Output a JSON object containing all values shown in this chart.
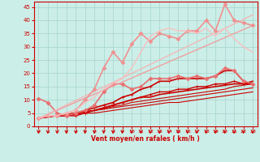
{
  "background_color": "#cceee8",
  "grid_color": "#aad8d0",
  "xlabel": "Vent moyen/en rafales ( km/h )",
  "xlabel_color": "#cc0000",
  "tick_color": "#cc0000",
  "xlim": [
    -0.5,
    23.5
  ],
  "ylim": [
    0,
    47
  ],
  "yticks": [
    0,
    5,
    10,
    15,
    20,
    25,
    30,
    35,
    40,
    45
  ],
  "xticks": [
    0,
    1,
    2,
    3,
    4,
    5,
    6,
    7,
    8,
    9,
    10,
    11,
    12,
    13,
    14,
    15,
    16,
    17,
    18,
    19,
    20,
    21,
    22,
    23
  ],
  "lines": [
    {
      "x": [
        0,
        1,
        2,
        3,
        4,
        5,
        6,
        7,
        8,
        9,
        10,
        11,
        12,
        13,
        14,
        15,
        16,
        17,
        18,
        19,
        20,
        21,
        22,
        23
      ],
      "y": [
        3,
        3.5,
        4,
        4,
        4.5,
        5,
        5,
        5.5,
        6,
        6.5,
        7,
        7.5,
        8,
        8.5,
        9,
        9,
        9.5,
        10,
        10.5,
        11,
        11.5,
        12,
        12.5,
        13
      ],
      "color": "#cc0000",
      "lw": 0.8,
      "marker": null,
      "ms": 0
    },
    {
      "x": [
        0,
        1,
        2,
        3,
        4,
        5,
        6,
        7,
        8,
        9,
        10,
        11,
        12,
        13,
        14,
        15,
        16,
        17,
        18,
        19,
        20,
        21,
        22,
        23
      ],
      "y": [
        3,
        3.5,
        4,
        4.5,
        5,
        5.5,
        6,
        6.5,
        7,
        7.5,
        8,
        8.5,
        9,
        9.5,
        10,
        10.5,
        11,
        11.5,
        12,
        12.5,
        13,
        13.5,
        14,
        14.5
      ],
      "color": "#cc0000",
      "lw": 0.8,
      "marker": null,
      "ms": 0
    },
    {
      "x": [
        0,
        1,
        2,
        3,
        4,
        5,
        6,
        7,
        8,
        9,
        10,
        11,
        12,
        13,
        14,
        15,
        16,
        17,
        18,
        19,
        20,
        21,
        22,
        23
      ],
      "y": [
        3,
        3.5,
        4,
        4.5,
        5,
        5.5,
        6,
        6.5,
        7.5,
        8,
        9,
        9.5,
        10,
        10.5,
        11,
        11.5,
        12,
        12.5,
        13,
        13.5,
        14,
        15,
        15.5,
        16
      ],
      "color": "#cc0000",
      "lw": 0.8,
      "marker": null,
      "ms": 0
    },
    {
      "x": [
        0,
        1,
        2,
        3,
        4,
        5,
        6,
        7,
        8,
        9,
        10,
        11,
        12,
        13,
        14,
        15,
        16,
        17,
        18,
        19,
        20,
        21,
        22,
        23
      ],
      "y": [
        3,
        4,
        4,
        4.5,
        5,
        5.5,
        6,
        7,
        8,
        9,
        10,
        11,
        11,
        12,
        12.5,
        13,
        13.5,
        14,
        14.5,
        15,
        15.5,
        16,
        16,
        17
      ],
      "color": "#cc0000",
      "lw": 1.2,
      "marker": null,
      "ms": 0
    },
    {
      "x": [
        0,
        1,
        2,
        3,
        4,
        5,
        6,
        7,
        8,
        9,
        10,
        11,
        12,
        13,
        14,
        15,
        16,
        17,
        18,
        19,
        20,
        21,
        22,
        23
      ],
      "y": [
        3,
        4,
        4,
        4,
        4,
        5,
        6,
        7,
        8,
        9,
        10,
        11,
        12,
        13,
        13,
        14,
        14,
        15,
        15,
        16,
        16,
        17,
        16,
        16
      ],
      "color": "#cc0000",
      "lw": 1.0,
      "marker": "+",
      "ms": 3
    },
    {
      "x": [
        0,
        1,
        2,
        3,
        4,
        5,
        6,
        7,
        8,
        9,
        10,
        11,
        12,
        13,
        14,
        15,
        16,
        17,
        18,
        19,
        20,
        21,
        22,
        23
      ],
      "y": [
        3,
        4,
        4,
        4,
        5,
        6,
        7,
        8,
        9,
        11,
        12,
        14,
        15,
        17,
        17,
        18,
        18,
        18,
        18,
        19,
        21,
        21,
        17,
        16
      ],
      "color": "#cc0000",
      "lw": 1.2,
      "marker": "+",
      "ms": 3
    },
    {
      "x": [
        0,
        1,
        2,
        3,
        4,
        5,
        6,
        7,
        8,
        9,
        10,
        11,
        12,
        13,
        14,
        15,
        16,
        17,
        18,
        19,
        20,
        21,
        22,
        23
      ],
      "y": [
        10.5,
        9,
        5,
        4,
        5,
        6,
        8,
        13,
        16,
        16,
        14,
        15,
        18,
        18,
        18,
        19,
        18,
        19,
        18,
        19,
        22,
        21,
        17,
        16
      ],
      "color": "#e87070",
      "lw": 1.2,
      "marker": "D",
      "ms": 2.5
    },
    {
      "x": [
        0,
        23
      ],
      "y": [
        3,
        38
      ],
      "color": "#f0a0a0",
      "lw": 1.0,
      "marker": null,
      "ms": 0
    },
    {
      "x": [
        0,
        23
      ],
      "y": [
        3,
        42
      ],
      "color": "#f0b8b8",
      "lw": 1.0,
      "marker": null,
      "ms": 0
    },
    {
      "x": [
        0,
        1,
        2,
        3,
        4,
        5,
        6,
        7,
        8,
        9,
        10,
        11,
        12,
        13,
        14,
        15,
        16,
        17,
        18,
        19,
        20,
        21,
        22,
        23
      ],
      "y": [
        3,
        4,
        4,
        5,
        6,
        10,
        14,
        22,
        28,
        24,
        31,
        35,
        32,
        35,
        34,
        33,
        36,
        36,
        40,
        36,
        46,
        40,
        39,
        38
      ],
      "color": "#f09090",
      "lw": 1.2,
      "marker": "D",
      "ms": 2.5
    },
    {
      "x": [
        0,
        1,
        2,
        3,
        4,
        5,
        6,
        7,
        8,
        9,
        10,
        11,
        12,
        13,
        14,
        15,
        16,
        17,
        18,
        19,
        20,
        21,
        22,
        23
      ],
      "y": [
        3,
        4,
        4,
        5,
        6,
        9,
        11,
        14,
        16,
        18,
        22,
        28,
        34,
        36,
        37,
        36,
        36,
        35,
        37,
        34,
        37,
        33,
        30,
        28
      ],
      "color": "#f8c0c0",
      "lw": 1.0,
      "marker": null,
      "ms": 0
    }
  ]
}
